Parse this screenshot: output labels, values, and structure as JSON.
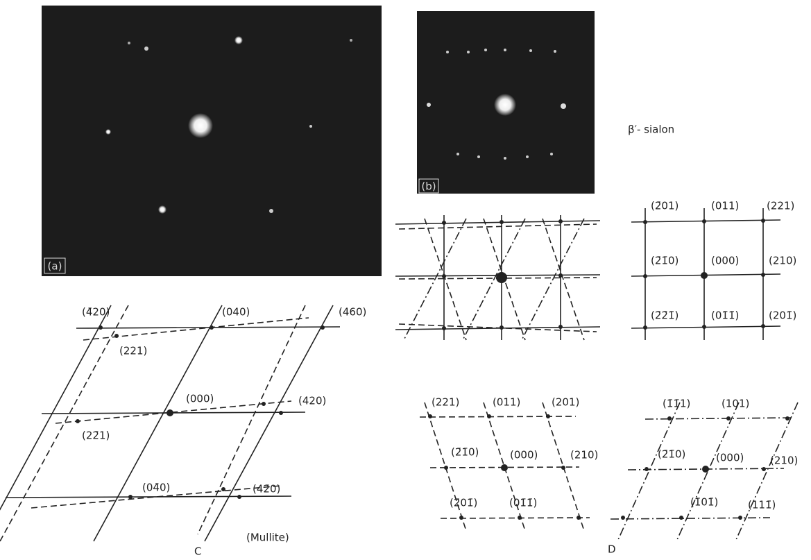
{
  "panels": {
    "a": {
      "label": "(a)"
    },
    "b": {
      "label": "(b)"
    }
  },
  "phase_label": "β′- sialon",
  "mullite": {
    "labels": [
      "(4̄20)",
      "(040)",
      "(460)",
      "(221)",
      "(000)",
      "(420)",
      "(22̄1)",
      "(04̄0)",
      "(42̄0)"
    ],
    "caption": "(Mullite)",
    "letter": "C"
  },
  "sialon": {
    "solid": {
      "labels": [
        "(2̄01)",
        "(011)",
        "(221)",
        "(2̄1̄0)",
        "(000)",
        "(210)",
        "(2̄2̄1̄)",
        "(01̄1̄)",
        "(201̄)"
      ]
    },
    "dashed": {
      "labels": [
        "(221)",
        "(011)",
        "(201)",
        "(2̄1̄0)",
        "(000)",
        "(210)",
        "(2̄01̄)",
        "(01̄1̄)"
      ]
    },
    "dashdot": {
      "labels": [
        "(1̄1̄1)",
        "(101)",
        "(2̄1̄0)",
        "(000)",
        "(210)",
        "(1̄01̄)",
        "(111̄)"
      ]
    },
    "letter": "D"
  }
}
